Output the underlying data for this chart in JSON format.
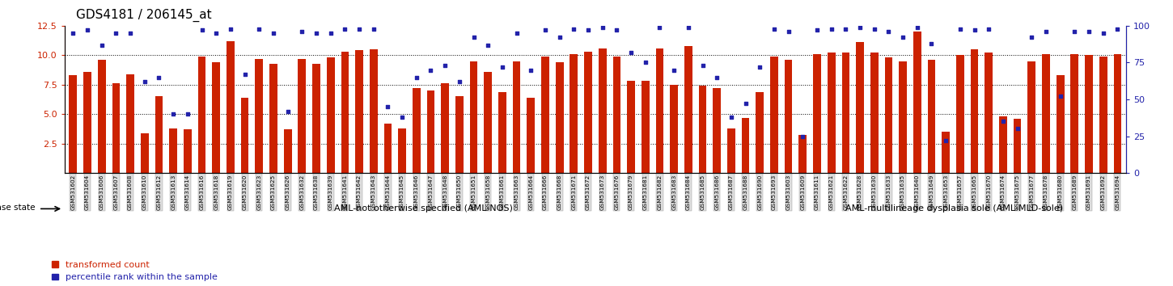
{
  "title": "GDS4181 / 206145_at",
  "samples": [
    "GSM531602",
    "GSM531604",
    "GSM531606",
    "GSM531607",
    "GSM531608",
    "GSM531610",
    "GSM531612",
    "GSM531613",
    "GSM531614",
    "GSM531616",
    "GSM531618",
    "GSM531619",
    "GSM531620",
    "GSM531623",
    "GSM531625",
    "GSM531626",
    "GSM531632",
    "GSM531638",
    "GSM531639",
    "GSM531641",
    "GSM531642",
    "GSM531643",
    "GSM531644",
    "GSM531645",
    "GSM531646",
    "GSM531647",
    "GSM531648",
    "GSM531650",
    "GSM531651",
    "GSM531658",
    "GSM531661",
    "GSM531663",
    "GSM531664",
    "GSM531666",
    "GSM531668",
    "GSM531671",
    "GSM531672",
    "GSM531673",
    "GSM531676",
    "GSM531679",
    "GSM531681",
    "GSM531682",
    "GSM531683",
    "GSM531684",
    "GSM531685",
    "GSM531686",
    "GSM531687",
    "GSM531688",
    "GSM531690",
    "GSM531693",
    "GSM531603",
    "GSM531609",
    "GSM531611",
    "GSM531621",
    "GSM531622",
    "GSM531628",
    "GSM531630",
    "GSM531633",
    "GSM531635",
    "GSM531640",
    "GSM531649",
    "GSM531653",
    "GSM531657",
    "GSM531665",
    "GSM531670",
    "GSM531674",
    "GSM531675",
    "GSM531677",
    "GSM531678",
    "GSM531680",
    "GSM531689",
    "GSM531691",
    "GSM531692",
    "GSM531694"
  ],
  "bar_values": [
    8.3,
    8.6,
    9.6,
    7.6,
    8.4,
    3.4,
    6.5,
    3.8,
    3.7,
    9.9,
    9.4,
    11.2,
    6.4,
    9.7,
    9.3,
    3.7,
    9.7,
    9.3,
    9.8,
    10.3,
    10.4,
    10.5,
    4.2,
    3.8,
    7.2,
    7.0,
    7.6,
    6.5,
    9.5,
    8.6,
    6.9,
    9.5,
    6.4,
    9.9,
    9.4,
    10.1,
    10.3,
    10.6,
    9.9,
    7.8,
    7.8,
    10.6,
    7.5,
    10.8,
    7.4,
    7.2,
    3.8,
    4.7,
    6.9,
    9.9,
    9.6,
    3.2,
    10.1,
    10.2,
    10.2,
    11.1,
    10.2,
    9.8,
    9.5,
    12.0,
    9.6,
    3.5,
    10.0,
    10.5,
    10.2,
    4.8,
    4.6,
    9.5,
    10.1,
    8.3,
    10.1,
    10.0,
    9.9,
    10.1
  ],
  "dot_values": [
    95,
    97,
    87,
    95,
    95,
    62,
    65,
    40,
    40,
    97,
    95,
    98,
    67,
    98,
    95,
    42,
    96,
    95,
    95,
    98,
    98,
    98,
    45,
    38,
    65,
    70,
    73,
    62,
    92,
    87,
    72,
    95,
    70,
    97,
    92,
    98,
    97,
    99,
    97,
    82,
    75,
    99,
    70,
    99,
    73,
    65,
    38,
    47,
    72,
    98,
    96,
    25,
    97,
    98,
    98,
    99,
    98,
    96,
    92,
    99,
    88,
    22,
    98,
    97,
    98,
    35,
    30,
    92,
    96,
    52,
    96,
    96,
    95,
    98
  ],
  "group1_label": "AML-not otherwise specified (AML-NOS)",
  "group2_label": "AML-multilineage dysplasia sole (AML-MLD-sole)",
  "group1_count": 50,
  "group2_count": 24,
  "disease_state_label": "disease state",
  "ylim_left": [
    0,
    12.5
  ],
  "ylim_right": [
    0,
    100
  ],
  "yticks_left": [
    2.5,
    5.0,
    7.5,
    10.0,
    12.5
  ],
  "yticks_right": [
    0,
    25,
    50,
    75,
    100
  ],
  "bar_color": "#CC2200",
  "dot_color": "#2222AA",
  "group1_bg": "#CCFFCC",
  "group2_bg": "#44CC44",
  "tick_bg": "#DDDDDD",
  "legend_bar_label": "transformed count",
  "legend_dot_label": "percentile rank within the sample"
}
